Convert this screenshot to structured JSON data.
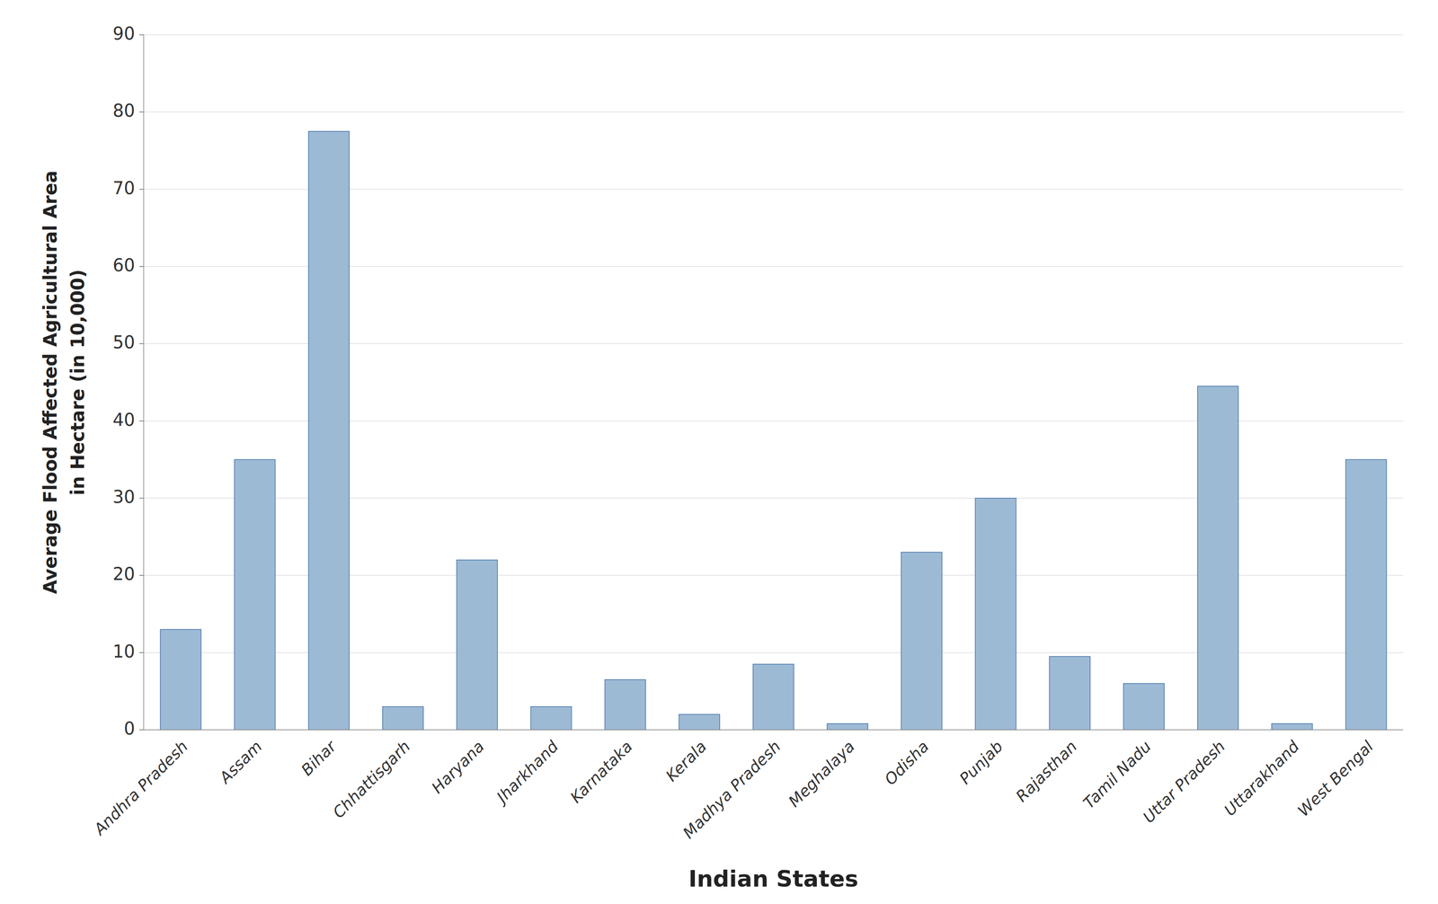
{
  "chart_data": {
    "type": "bar",
    "categories": [
      "Andhra Pradesh",
      "Assam",
      "Bihar",
      "Chhattisgarh",
      "Haryana",
      "Jharkhand",
      "Karnataka",
      "Kerala",
      "Madhya Pradesh",
      "Meghalaya",
      "Odisha",
      "Punjab",
      "Rajasthan",
      "Tamil Nadu",
      "Uttar Pradesh",
      "Uttarakhand",
      "West Bengal"
    ],
    "values": [
      13,
      35,
      77.5,
      3,
      22,
      3,
      6.5,
      2,
      8.5,
      0.8,
      23,
      30,
      9.5,
      6,
      44.5,
      0.8,
      35
    ],
    "color": "#9dbad5",
    "ylabel": "Average Flood Affected Agricultural Area\nin Hectare (in 10,000)",
    "xlabel": "Indian States",
    "ylim": [
      0,
      90
    ],
    "yticks": [
      0,
      10,
      20,
      30,
      40,
      50,
      60,
      70,
      80,
      90
    ],
    "grid": true
  }
}
